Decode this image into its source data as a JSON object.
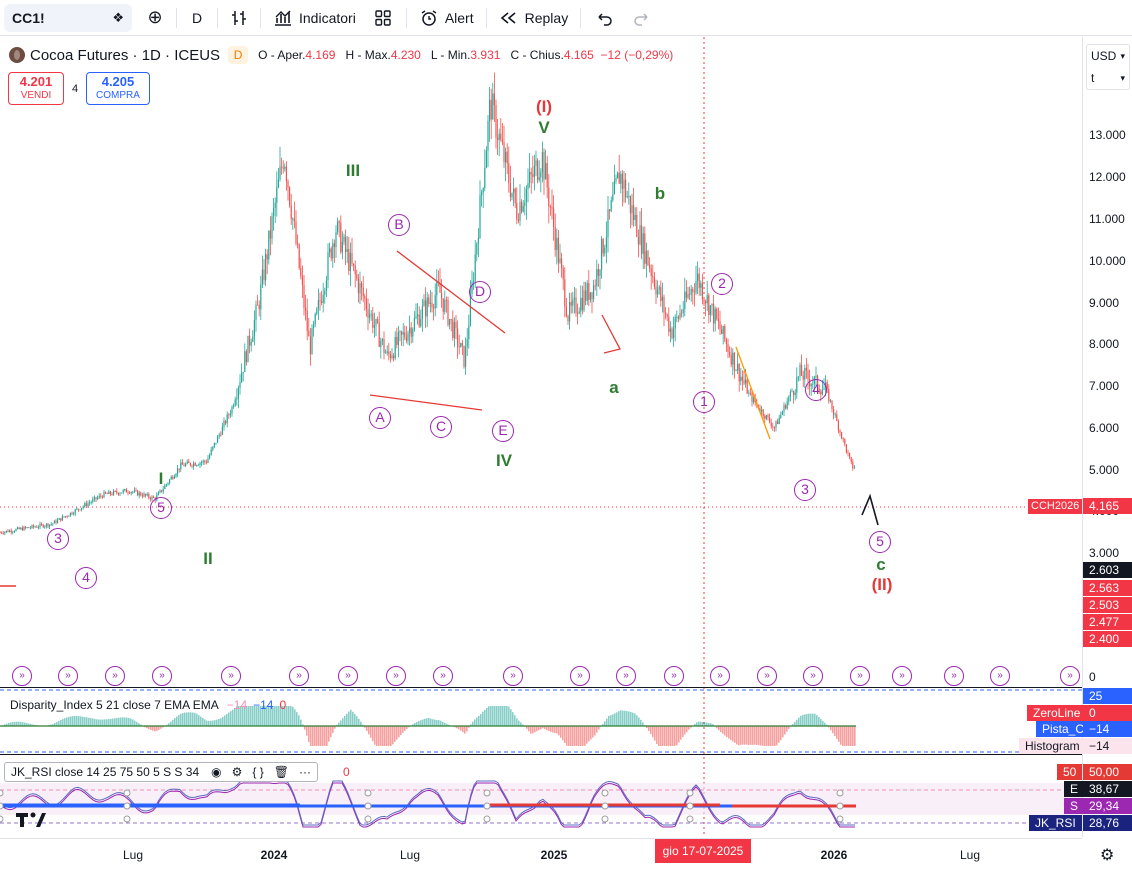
{
  "toolbar": {
    "symbol": "CC1!",
    "interval": "D",
    "indicators_label": "Indicatori",
    "alert_label": "Alert",
    "replay_label": "Replay"
  },
  "legend": {
    "title": "Cocoa Futures · 1D · ICEUS",
    "badge": "D",
    "open_label": "O - Aper.",
    "open": "4.169",
    "high_label": "H - Max.",
    "high": "4.230",
    "low_label": "L - Min.",
    "low": "3.931",
    "close_label": "C - Chius.",
    "close": "4.165",
    "change": "−12 (−0,29%)"
  },
  "trade": {
    "sell_price": "4.201",
    "sell_label": "VENDI",
    "spread": "4",
    "buy_price": "4.205",
    "buy_label": "COMPRA"
  },
  "currency": {
    "value": "USD",
    "unit": "t"
  },
  "price_axis": {
    "ticks": [
      "13.000",
      "12.000",
      "11.000",
      "10.000",
      "9.000",
      "8.000",
      "7.000",
      "6.000",
      "5.000",
      "4.000",
      "3.000",
      "0"
    ],
    "current_tag": {
      "name": "CCH2026",
      "value": "4.165",
      "color": "#f23645"
    },
    "tags": [
      {
        "value": "2.603",
        "color": "#131722"
      },
      {
        "value": "2.563",
        "color": "#f23645"
      },
      {
        "value": "2.503",
        "color": "#f23645"
      },
      {
        "value": "2.477",
        "color": "#f23645"
      },
      {
        "value": "2.400",
        "color": "#f23645"
      }
    ]
  },
  "waves": {
    "green": [
      "I",
      "II",
      "III",
      "IV",
      "V",
      "a",
      "b",
      "c"
    ],
    "red": [
      "(I)",
      "(II)"
    ],
    "purple": [
      "3",
      "4",
      "5",
      "A",
      "B",
      "C",
      "D",
      "E",
      "1",
      "2",
      "3",
      "4",
      "5"
    ]
  },
  "disparity": {
    "label": "Disparity_Index 5 21 close 7 EMA EMA",
    "v1": "−14",
    "v2": "−14",
    "v3": "0",
    "scale_top": "25",
    "tags": [
      {
        "name": "ZeroLine",
        "value": "0",
        "color": "#f23645"
      },
      {
        "name": "Pista_C",
        "value": "−14",
        "color": "#2962ff"
      },
      {
        "name": "Histogram",
        "value": "−14",
        "color": "#fce4ec"
      }
    ]
  },
  "rsi": {
    "label": "JK_RSI close 14 25 75 50 5 S S 34",
    "value_hint": "0",
    "tags": [
      {
        "name": "50",
        "value": "50,00",
        "color": "#e53935"
      },
      {
        "name": "E",
        "value": "38,67",
        "color": "#131722"
      },
      {
        "name": "S",
        "value": "29,34",
        "color": "#9c27b0"
      },
      {
        "name": "JK_RSI",
        "value": "28,76",
        "color": "#1a237e"
      }
    ]
  },
  "time_axis": {
    "labels": [
      "Lug",
      "2024",
      "Lug",
      "2025",
      "2026",
      "Lug"
    ],
    "crosshair": "gio 17-07-2025"
  },
  "chart_data": {
    "type": "candlestick",
    "title": "Cocoa Futures · 1D · ICEUS",
    "ylim": [
      0,
      14000
    ],
    "path": [
      [
        "2023-05",
        2600
      ],
      [
        "2023-07",
        2800
      ],
      [
        "2023-09",
        3500
      ],
      [
        "2023-10",
        3600
      ],
      [
        "2023-11",
        3400
      ],
      [
        "2023-12",
        4200
      ],
      [
        "2024-01",
        4300
      ],
      [
        "2024-02",
        5600
      ],
      [
        "2024-03",
        8000
      ],
      [
        "2024-04",
        11700
      ],
      [
        "2024-05",
        7000
      ],
      [
        "2024-06",
        9900
      ],
      [
        "2024-08",
        6800
      ],
      [
        "2024-10",
        8400
      ],
      [
        "2024-11",
        6700
      ],
      [
        "2024-12",
        12900
      ],
      [
        "2025-01",
        10300
      ],
      [
        "2025-02",
        11600
      ],
      [
        "2025-03",
        7800
      ],
      [
        "2025-04",
        8500
      ],
      [
        "2025-05",
        11200
      ],
      [
        "2025-07",
        7400
      ],
      [
        "2025-08",
        8700
      ],
      [
        "2025-10",
        5900
      ],
      [
        "2025-11",
        5100
      ],
      [
        "2025-12",
        6400
      ],
      [
        "2026-01",
        6000
      ],
      [
        "2026-02",
        4165
      ]
    ]
  }
}
